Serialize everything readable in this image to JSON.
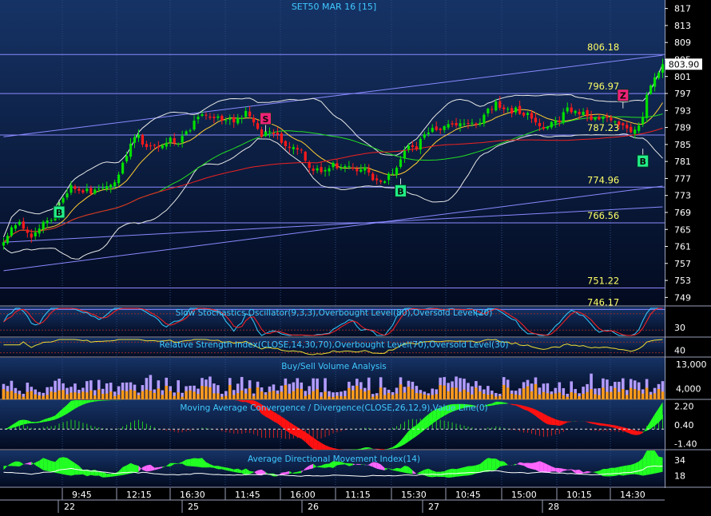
{
  "title": "SET50 MAR 16  [15]",
  "last_price_label": "803.90",
  "colors": {
    "bg_top": "#1a3a73",
    "bg_bottom": "#000814",
    "title": "#3fc8ff",
    "axis_text": "#ffffff",
    "level_text": "#ffff66",
    "level_line": "#8a8aff",
    "up": "#00e000",
    "down": "#ff1a1a",
    "buy": "#22ee88",
    "sell": "#ee2277",
    "macd_pos": "#22ff22",
    "macd_neg": "#ff1111",
    "adx_plus": "#22ff22",
    "adx_minus": "#ff66ff"
  },
  "chart_data": [
    {
      "type": "candlestick",
      "title": "SET50 MAR 16  [15]",
      "y_ticks": [
        817,
        813,
        809,
        805,
        801,
        797,
        793,
        789,
        785,
        781,
        777,
        773,
        769,
        765,
        761,
        757,
        753,
        749
      ],
      "ylim": [
        747,
        819
      ],
      "levels": [
        806.18,
        796.97,
        787.23,
        774.96,
        766.56,
        751.22,
        746.17
      ],
      "level_labels": [
        "806.18",
        "796.97",
        "787.23",
        "774.96",
        "766.56",
        "751.22",
        "746.17"
      ],
      "last_price": 803.9,
      "x_time_labels": [
        "9:45",
        "12:15",
        "16:30",
        "11:45",
        "16:00",
        "11:15",
        "15:30",
        "10:45",
        "15:00",
        "10:15",
        "14:30"
      ],
      "x_date_labels": [
        "22",
        "25",
        "26",
        "27",
        "28"
      ],
      "signals": [
        {
          "label": "B",
          "kind": "buy",
          "bar": 14,
          "price": 769
        },
        {
          "label": "S",
          "kind": "sell",
          "bar": 66,
          "price": 791
        },
        {
          "label": "B",
          "kind": "buy",
          "bar": 100,
          "price": 774
        },
        {
          "label": "Z",
          "kind": "sell",
          "bar": 156,
          "price": 796.5
        },
        {
          "label": "B",
          "kind": "buy",
          "bar": 161,
          "price": 781
        }
      ],
      "close": [
        762,
        763.5,
        765.5,
        766,
        766.8,
        765.2,
        764.2,
        763.1,
        764.3,
        765.2,
        766.8,
        767.1,
        767.2,
        768.4,
        771.4,
        772.4,
        773.5,
        775.4,
        774.5,
        774.1,
        773.7,
        774.6,
        773.4,
        774.4,
        774.6,
        774.8,
        775.2,
        775.5,
        776.1,
        777.9,
        780.7,
        782.3,
        785.2,
        786.7,
        787.3,
        785,
        784.4,
        784.7,
        784.7,
        784.3,
        784.8,
        785.4,
        786.6,
        785.3,
        785.2,
        787,
        788.1,
        788.3,
        790.6,
        791.5,
        792.1,
        791.8,
        791.3,
        791.2,
        791.6,
        790.6,
        790.7,
        791.2,
        790.2,
        791.3,
        791.2,
        792.9,
        791.6,
        790.2,
        788.7,
        786.8,
        788.1,
        788.1,
        787.4,
        787.3,
        785.4,
        784.6,
        784.2,
        784.4,
        783.8,
        783.6,
        781.2,
        779.5,
        778.8,
        779.4,
        778.5,
        779,
        779.4,
        780.7,
        779.4,
        779.5,
        779.9,
        779.9,
        779.3,
        778.7,
        779.1,
        779.6,
        778.4,
        776.6,
        776.6,
        776.2,
        776.3,
        778.1,
        778.1,
        779.5,
        781.5,
        783.5,
        784.7,
        784.4,
        783.8,
        786.3,
        787.4,
        787.8,
        788.9,
        788.4,
        788.4,
        789.3,
        789.8,
        789.7,
        789.5,
        790,
        789.9,
        790,
        790.1,
        789.6,
        790.1,
        792,
        793.4,
        793.2,
        795.1,
        793.6,
        793.3,
        793.4,
        792.3,
        793.7,
        792.2,
        791.8,
        792.4,
        791.1,
        790.2,
        789.3,
        788.7,
        789.1,
        790.3,
        790.7,
        790.3,
        792.6,
        793.7,
        792.6,
        792.9,
        792.1,
        792.7,
        791.6,
        790.8,
        791.3,
        790.9,
        791.4,
        791.3,
        790.7,
        790.4,
        789.6,
        789.5,
        788.8,
        787.9,
        788.5,
        789.5,
        791.5,
        796.7,
        798.9,
        800.8,
        801.9,
        803.9
      ],
      "vol_max": 13000,
      "rsi_ticks": [
        40
      ],
      "stoch_ticks": [
        30
      ],
      "volume_ticks": [
        13000,
        4000
      ],
      "macd_ticks": [
        2.2,
        0.4,
        -1.4
      ],
      "adx_ticks": [
        34,
        18
      ],
      "panel_titles": {
        "stochastic": "Slow Stochastics Oscillator(9,3,3),Overbought Level(80),Oversold Level(20)",
        "rsi": "Relative Strength Index(CLOSE,14,30,70),Overbought Level(70),Oversold Level(30)",
        "volume": "Buy/Sell Volume Analysis",
        "macd": "Moving Average Convergence / Divergence(CLOSE,26,12,9),Value Line(0)",
        "adx": "Average Directional Movement Index(14)"
      }
    }
  ]
}
